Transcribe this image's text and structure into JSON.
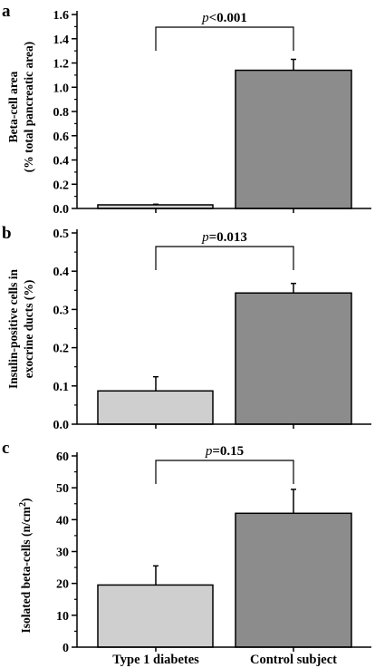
{
  "chart_data": [
    {
      "type": "bar",
      "panel_label": "a",
      "categories": [
        "Type 1 diabetes",
        "Control subject"
      ],
      "values": [
        0.03,
        1.14
      ],
      "errors": [
        0.005,
        0.09
      ],
      "ylabel": "Beta-cell area",
      "ylabel2": "(% total pancreatic area)",
      "ylim": [
        0,
        1.6
      ],
      "yticks": [
        "0.0",
        "0.2",
        "0.4",
        "0.6",
        "0.8",
        "1.0",
        "1.2",
        "1.4",
        "1.6"
      ],
      "significance": {
        "p_prefix": "p",
        "p_value": "<0.001"
      },
      "colors": [
        "#cfcfcf",
        "#8c8c8c"
      ]
    },
    {
      "type": "bar",
      "panel_label": "b",
      "categories": [
        "Type 1 diabetes",
        "Control subject"
      ],
      "values": [
        0.087,
        0.343
      ],
      "errors": [
        0.037,
        0.025
      ],
      "ylabel": "Insulin-positive cells in",
      "ylabel2": "exocrine ducts (%)",
      "ylim": [
        0,
        0.5
      ],
      "yticks": [
        "0.0",
        "0.1",
        "0.2",
        "0.3",
        "0.4",
        "0.5"
      ],
      "significance": {
        "p_prefix": "p",
        "p_value": "=0.013"
      },
      "colors": [
        "#cfcfcf",
        "#8c8c8c"
      ]
    },
    {
      "type": "bar",
      "panel_label": "c",
      "categories": [
        "Type 1 diabetes",
        "Control subject"
      ],
      "values": [
        19.5,
        42
      ],
      "errors": [
        6,
        7.5
      ],
      "ylabel": "Isolated beta-cells (n/cm",
      "ylabel_sup": "2",
      "ylabel_end": ")",
      "ylim": [
        0,
        60
      ],
      "yticks": [
        "0",
        "10",
        "20",
        "30",
        "40",
        "50",
        "60"
      ],
      "significance": {
        "p_prefix": "p",
        "p_value": "=0.15"
      },
      "colors": [
        "#cfcfcf",
        "#8c8c8c"
      ]
    }
  ]
}
